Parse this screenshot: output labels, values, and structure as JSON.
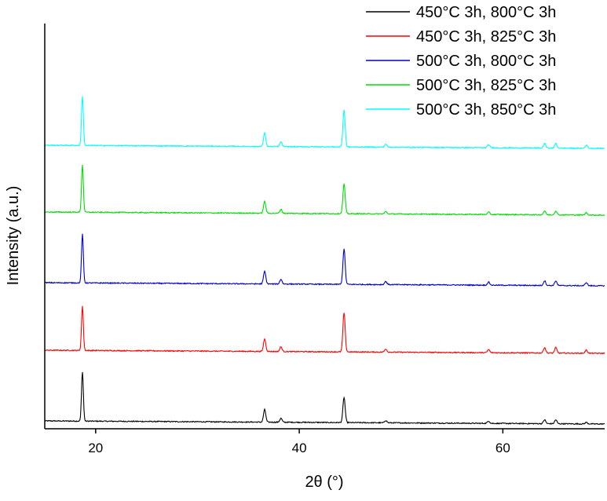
{
  "chart_data": {
    "type": "line",
    "xlabel": "2θ (°)",
    "ylabel": "Intensity (a.u.)",
    "xlim": [
      15,
      70
    ],
    "x_ticks": [
      20,
      40,
      60
    ],
    "x_tick_labels": [
      "20",
      "40",
      "60"
    ],
    "y_ticks_shown": false,
    "grid": false,
    "legend_position": "top-right",
    "peak_positions": [
      18.7,
      36.6,
      38.2,
      44.4,
      48.5,
      58.6,
      64.1,
      65.2,
      68.2
    ],
    "series": [
      {
        "name": "450°C 3h, 800°C 3h",
        "color": "#000000",
        "offset": 0,
        "peak_heights": [
          63,
          16,
          5,
          32,
          3,
          3,
          5,
          5,
          2
        ]
      },
      {
        "name": "450°C 3h, 825°C 3h",
        "color": "#ff0000",
        "offset": 1,
        "peak_heights": [
          56,
          16,
          6,
          50,
          4,
          4,
          7,
          7,
          4
        ]
      },
      {
        "name": "500°C 3h, 800°C 3h",
        "color": "#0000cc",
        "offset": 2,
        "peak_heights": [
          62,
          16,
          6,
          45,
          4,
          4,
          6,
          6,
          4
        ]
      },
      {
        "name": "500°C 3h, 825°C 3h",
        "color": "#00dd00",
        "offset": 3,
        "peak_heights": [
          60,
          15,
          5,
          38,
          3,
          3,
          5,
          5,
          3
        ]
      },
      {
        "name": "500°C 3h, 850°C 3h",
        "color": "#00ffff",
        "offset": 4,
        "peak_heights": [
          63,
          17,
          6,
          47,
          4,
          4,
          6,
          6,
          4
        ]
      }
    ]
  }
}
